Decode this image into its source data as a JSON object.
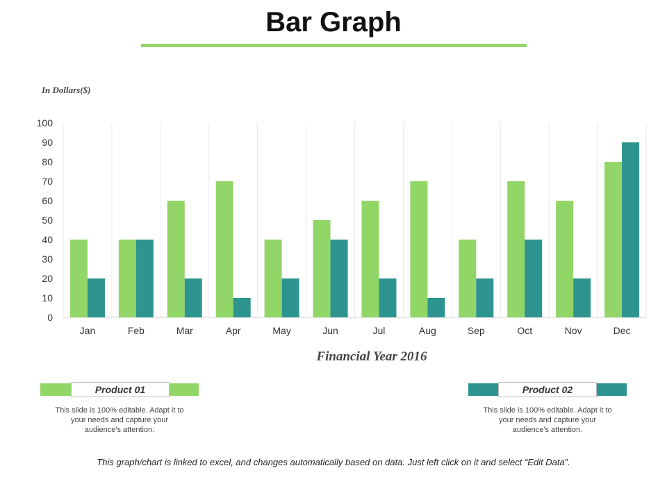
{
  "title": "Bar Graph",
  "colors": {
    "accent": "#92d668",
    "product1": "#92d668",
    "product2": "#2e9490",
    "grid": "#e8e8e8"
  },
  "chart_data": {
    "type": "bar",
    "title": "Bar Graph",
    "ylabel": "In Dollars($)",
    "xlabel": "Financial Year 2016",
    "ylim": [
      0,
      100
    ],
    "yticks": [
      0,
      10,
      20,
      30,
      40,
      50,
      60,
      70,
      80,
      90,
      100
    ],
    "categories": [
      "Jan",
      "Feb",
      "Mar",
      "Apr",
      "May",
      "Jun",
      "Jul",
      "Aug",
      "Sep",
      "Oct",
      "Nov",
      "Dec"
    ],
    "series": [
      {
        "name": "Product 01",
        "color": "#92d668",
        "values": [
          40,
          40,
          60,
          70,
          40,
          50,
          60,
          70,
          40,
          70,
          60,
          80
        ]
      },
      {
        "name": "Product 02",
        "color": "#2e9490",
        "values": [
          20,
          40,
          20,
          10,
          20,
          40,
          20,
          10,
          20,
          40,
          20,
          90
        ]
      }
    ],
    "grid": true,
    "legend": "bottom"
  },
  "legend": {
    "product1": {
      "label": "Product 01",
      "desc": "This slide is 100% editable. Adapt it to your needs and capture your audience's attention."
    },
    "product2": {
      "label": "Product 02",
      "desc": "This slide is 100% editable. Adapt it to your needs and capture your audience's attention."
    }
  },
  "footer": "This graph/chart is linked to excel, and changes automatically based on data.  Just left click on it and select “Edit Data”."
}
